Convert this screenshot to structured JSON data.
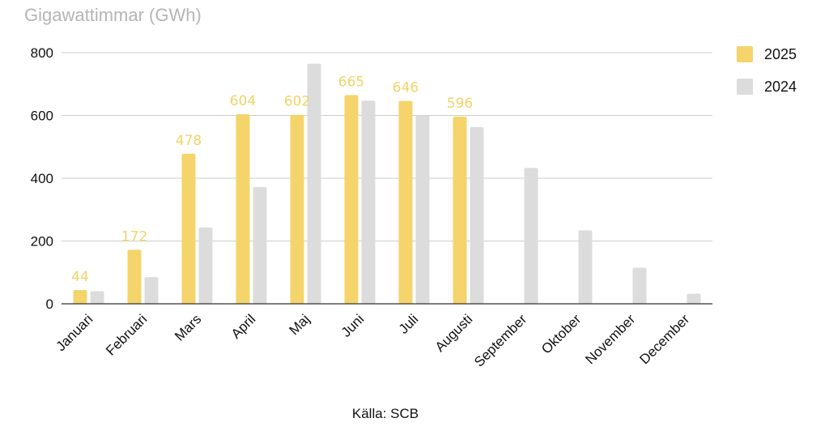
{
  "chart_data": {
    "type": "bar",
    "ylabel": "Gigawattimmar (GWh)",
    "xlabel": "",
    "source": "Källa: SCB",
    "categories": [
      "Januari",
      "Februari",
      "Mars",
      "April",
      "Maj",
      "Juni",
      "Juli",
      "Augusti",
      "September",
      "Oktober",
      "November",
      "December"
    ],
    "series": [
      {
        "name": "2025",
        "color": "#f4d46b",
        "values": [
          44,
          172,
          478,
          604,
          602,
          665,
          646,
          596,
          null,
          null,
          null,
          null
        ],
        "show_labels": true
      },
      {
        "name": "2024",
        "color": "#dcdcdc",
        "values": [
          40,
          85,
          243,
          372,
          765,
          647,
          600,
          563,
          433,
          234,
          115,
          32
        ],
        "show_labels": false
      }
    ],
    "data_labels": [
      "44",
      "172",
      "478",
      "604",
      "602",
      "665",
      "646",
      "596"
    ],
    "ylim": [
      0,
      800
    ],
    "yticks": [
      0,
      200,
      400,
      600,
      800
    ],
    "grid": true,
    "legend_position": "right"
  }
}
